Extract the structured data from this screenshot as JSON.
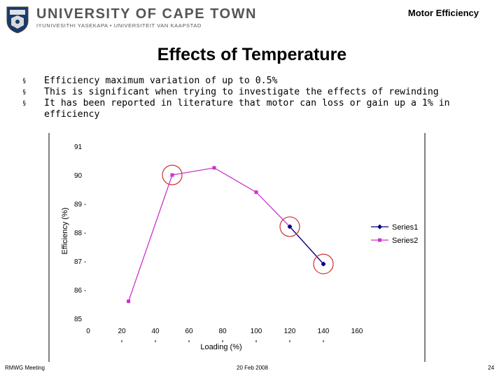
{
  "header": {
    "university_name": "UNIVERSITY OF CAPE TOWN",
    "university_subtitle": "IYUNIVESITHI YASEKAPA • UNIVERSITEIT VAN KAAPSTAD",
    "title": "Motor Efficiency"
  },
  "slide": {
    "title": "Effects of Temperature",
    "bullet_symbol": "§",
    "bullets": [
      "Efficiency maximum variation of up to 0.5%",
      "This is significant when trying to investigate the effects of rewinding",
      "It has been reported in literature that motor can loss or gain up a 1% in efficiency"
    ]
  },
  "footer": {
    "left": "RMWG Meeting",
    "center": "20 Feb 2008",
    "right": "24"
  },
  "colors": {
    "series1": "#000080",
    "series2": "#cc33cc",
    "highlight_circle": "#cc3333",
    "chart_border": "#000000"
  },
  "chart_data": {
    "type": "line",
    "title": "",
    "xlabel": "Loading (%)",
    "ylabel": "Efficiency (%)",
    "xlim": [
      0,
      160
    ],
    "ylim": [
      85,
      91
    ],
    "xticks": [
      0,
      20,
      40,
      60,
      80,
      100,
      120,
      140,
      160
    ],
    "yticks": [
      85,
      86,
      87,
      88,
      89,
      90,
      91
    ],
    "ytick_labels": [
      "85",
      "86 -",
      "87 -",
      "88 -",
      "89 -",
      "90",
      "91"
    ],
    "grid": false,
    "legend": "right",
    "series": [
      {
        "name": "Series1",
        "marker": "diamond",
        "x": [
          120,
          140
        ],
        "y": [
          88.2,
          86.9
        ]
      },
      {
        "name": "Series2",
        "marker": "square",
        "x": [
          24,
          50,
          75,
          100,
          120,
          140
        ],
        "y": [
          85.6,
          90.0,
          90.25,
          89.4,
          88.2,
          86.9
        ]
      }
    ],
    "highlighted_points": [
      {
        "x": 50,
        "y": 90.0
      },
      {
        "x": 120,
        "y": 88.2
      },
      {
        "x": 140,
        "y": 86.9
      }
    ]
  }
}
